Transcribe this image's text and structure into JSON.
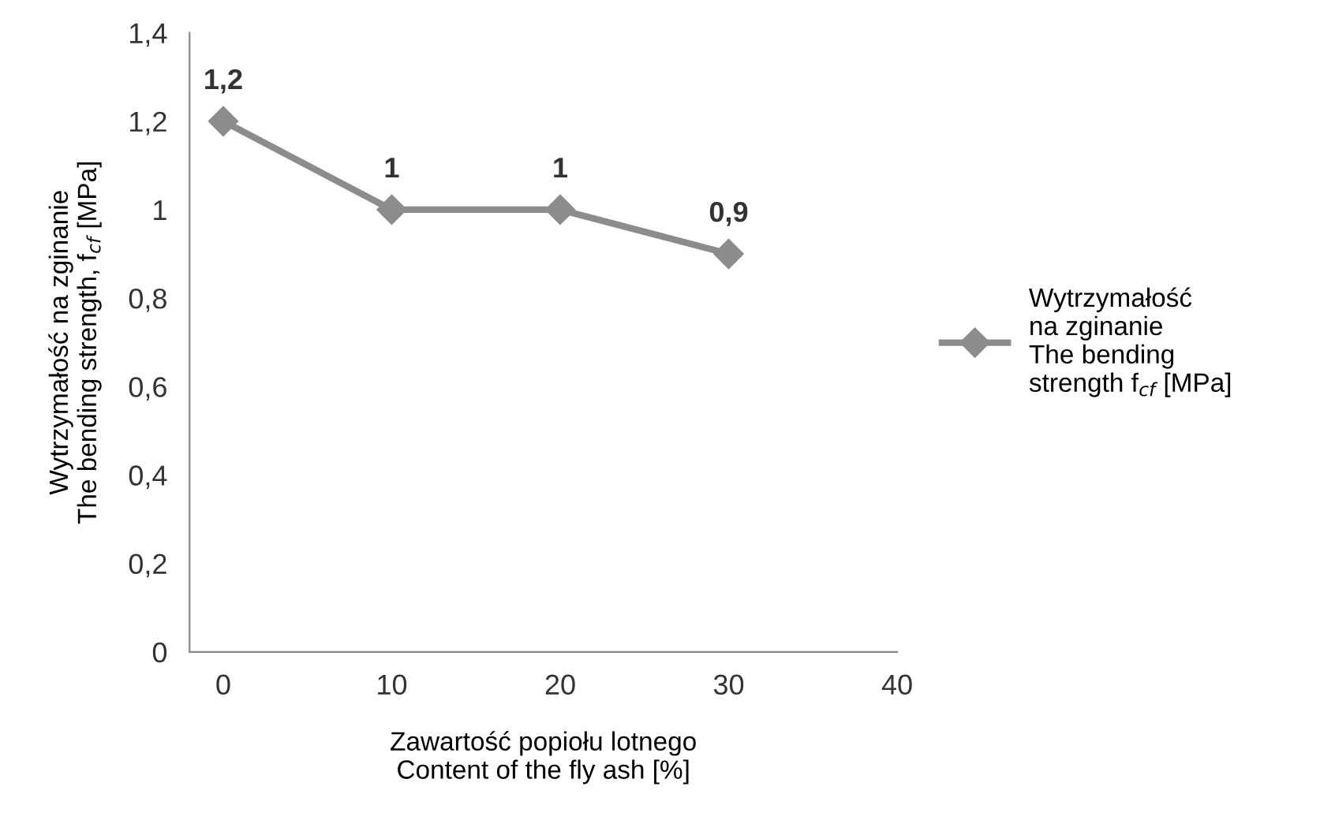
{
  "chart_data": {
    "type": "line",
    "xlabel": "Zawartość popiołu lotnego\nContent of the fly ash [%]",
    "ylabel": "Wytrzymałość na zginanie\nThe bending strength, f$_{cf}$ [MPa]",
    "x": [
      0,
      10,
      20,
      30
    ],
    "series": [
      {
        "name": "Wytrzymałość\nna zginanie\nThe bending\nstrength f$_{cf}$ [MPa]",
        "color": "#8c8c8c",
        "values": [
          1.2,
          1.0,
          1.0,
          0.9
        ],
        "value_labels": [
          "1,2",
          "1",
          "1",
          "0,9"
        ]
      }
    ],
    "xlim": [
      -2,
      40
    ],
    "xticks": [
      0,
      10,
      20,
      30,
      40
    ],
    "ylim": [
      0,
      1.4
    ],
    "yticks": [
      0,
      {
        "value": 0.2,
        "label": "0,2"
      },
      {
        "value": 0.4,
        "label": "0,4"
      },
      {
        "value": 0.6,
        "label": "0,6"
      },
      {
        "value": 0.8,
        "label": "0,8"
      },
      1,
      {
        "value": 1.2,
        "label": "1,2"
      },
      {
        "value": 1.4,
        "label": "1,4"
      }
    ],
    "grid": false,
    "legend": "right",
    "marker": "diamond",
    "line_style": "solid"
  }
}
